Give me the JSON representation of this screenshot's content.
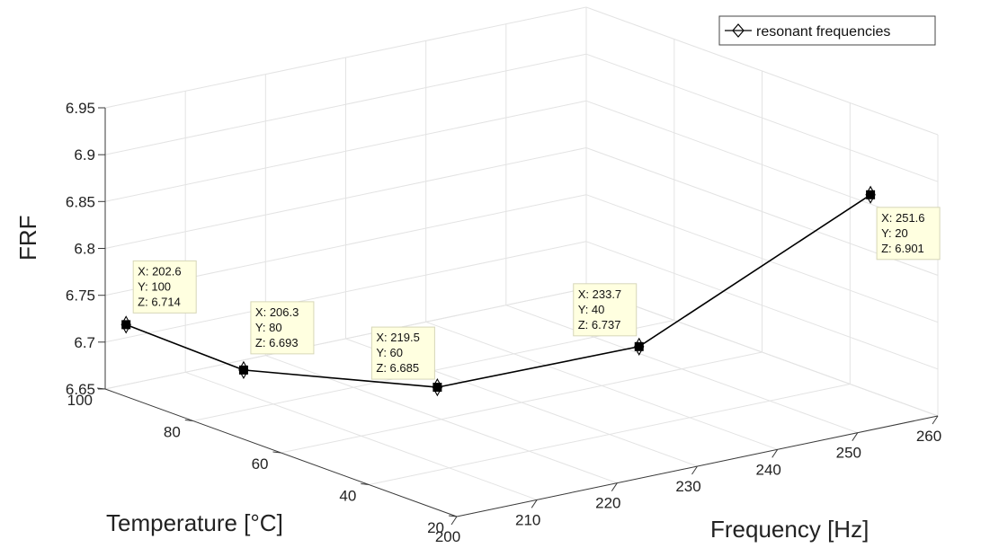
{
  "chart_data": {
    "type": "line",
    "title": "",
    "xlabel": "Frequency [Hz]",
    "ylabel": "Temperature [°C]",
    "zlabel": "FRF",
    "x_ticks": [
      "200",
      "210",
      "220",
      "230",
      "240",
      "250",
      "260"
    ],
    "y_ticks": [
      "20",
      "40",
      "60",
      "80",
      "100"
    ],
    "z_ticks": [
      "6.65",
      "6.7",
      "6.75",
      "6.8",
      "6.85",
      "6.9",
      "6.95"
    ],
    "xlim": [
      200,
      260
    ],
    "ylim": [
      20,
      100
    ],
    "zlim": [
      6.65,
      6.95
    ],
    "grid": true,
    "legend_position": "top-right",
    "series": [
      {
        "name": "resonant frequencies",
        "color": "#000000",
        "marker": "diamond",
        "points": [
          {
            "x": 202.6,
            "y": 100,
            "z": 6.714
          },
          {
            "x": 206.3,
            "y": 80,
            "z": 6.693
          },
          {
            "x": 219.5,
            "y": 60,
            "z": 6.685
          },
          {
            "x": 233.7,
            "y": 40,
            "z": 6.737
          },
          {
            "x": 251.6,
            "y": 20,
            "z": 6.901
          }
        ]
      }
    ],
    "datatips": [
      {
        "x_text": "X: 202.6",
        "y_text": "Y: 100",
        "z_text": "Z: 6.714"
      },
      {
        "x_text": "X: 206.3",
        "y_text": "Y: 80",
        "z_text": "Z: 6.693"
      },
      {
        "x_text": "X: 219.5",
        "y_text": "Y: 60",
        "z_text": "Z: 6.685"
      },
      {
        "x_text": "X: 233.7",
        "y_text": "Y: 40",
        "z_text": "Z: 6.737"
      },
      {
        "x_text": "X: 251.6",
        "y_text": "Y: 20",
        "z_text": "Z: 6.901"
      }
    ]
  }
}
